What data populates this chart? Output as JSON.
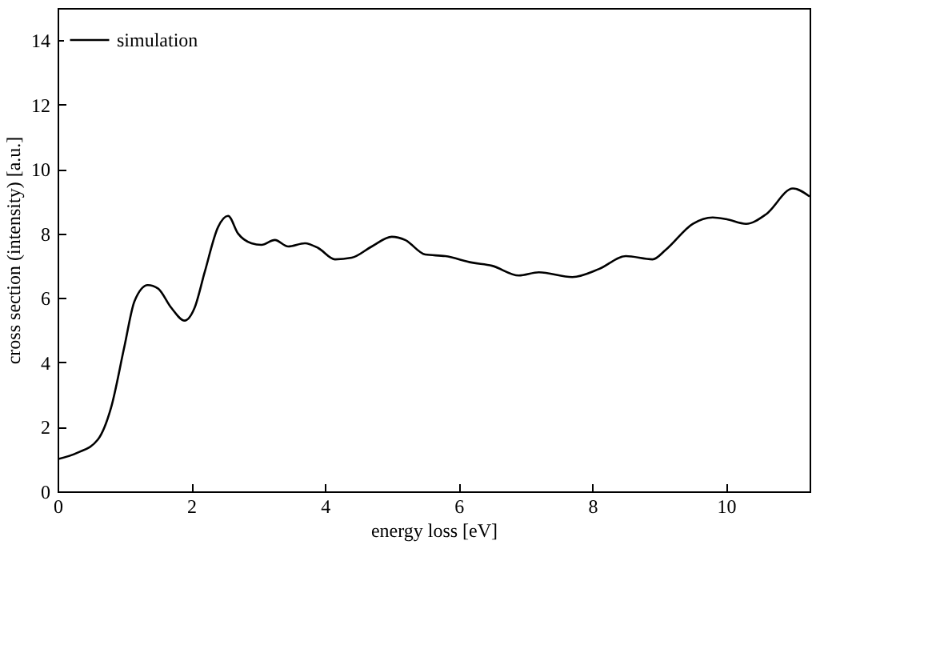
{
  "chart_data": {
    "type": "line",
    "xlabel": "energy loss [eV]",
    "ylabel": "cross section (intensity) [a.u.]",
    "xlim": [
      0,
      11.25
    ],
    "xticks": [
      0,
      2,
      4,
      6,
      8,
      10
    ],
    "ylim": [
      0,
      15
    ],
    "yticks": [
      0,
      2,
      4,
      6,
      8,
      10,
      12,
      14
    ],
    "grid": false,
    "legend": "top left",
    "marker": "none",
    "line_style": "solid",
    "series": [
      {
        "name": "simulation",
        "color": "#000000",
        "x": [
          0,
          0.3,
          0.6,
          0.8,
          1.0,
          1.15,
          1.35,
          1.5,
          1.7,
          1.9,
          2.05,
          2.2,
          2.4,
          2.55,
          2.7,
          2.9,
          3.05,
          3.25,
          3.45,
          3.7,
          3.9,
          4.15,
          4.4,
          4.7,
          5.0,
          5.2,
          5.5,
          5.8,
          6.2,
          6.5,
          6.9,
          7.2,
          7.7,
          8.1,
          8.5,
          8.9,
          9.1,
          9.5,
          9.8,
          10.0,
          10.3,
          10.6,
          11.0,
          11.25
        ],
        "values": [
          1.0,
          1.2,
          1.6,
          2.6,
          4.5,
          5.9,
          6.4,
          6.3,
          5.7,
          5.3,
          5.7,
          6.8,
          8.2,
          8.55,
          8.0,
          7.7,
          7.65,
          7.8,
          7.6,
          7.7,
          7.55,
          7.2,
          7.25,
          7.6,
          7.9,
          7.8,
          7.35,
          7.3,
          7.1,
          7.0,
          6.7,
          6.8,
          6.65,
          6.9,
          7.3,
          7.2,
          7.5,
          8.3,
          8.5,
          8.45,
          8.3,
          8.6,
          9.4,
          9.15
        ]
      }
    ]
  }
}
